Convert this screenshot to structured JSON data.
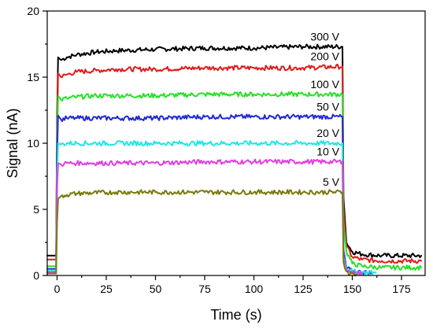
{
  "chart_data": {
    "type": "line",
    "xlabel": "Time (s)",
    "ylabel": "Signal (nA)",
    "xlim": [
      -5,
      187
    ],
    "ylim": [
      0,
      20
    ],
    "xticks": [
      0,
      25,
      50,
      75,
      100,
      125,
      150,
      175
    ],
    "yticks": [
      0,
      5,
      10,
      15,
      20
    ],
    "grid": false,
    "legend": "inline labels near right end of each series",
    "series": [
      {
        "name": "300 V",
        "color": "#000000",
        "points": [
          [
            -5,
            1.5
          ],
          [
            -0.5,
            1.5
          ],
          [
            0,
            12.0
          ],
          [
            0.5,
            16.5
          ],
          [
            2,
            16.3
          ],
          [
            5,
            16.5
          ],
          [
            10,
            16.7
          ],
          [
            20,
            16.9
          ],
          [
            30,
            17.0
          ],
          [
            50,
            17.1
          ],
          [
            75,
            17.2
          ],
          [
            100,
            17.2
          ],
          [
            125,
            17.3
          ],
          [
            145,
            17.3
          ],
          [
            145.5,
            6.0
          ],
          [
            147,
            2.5
          ],
          [
            150,
            1.8
          ],
          [
            155,
            1.6
          ],
          [
            165,
            1.5
          ],
          [
            185,
            1.5
          ]
        ]
      },
      {
        "name": "200 V",
        "color": "#e01b1b",
        "points": [
          [
            -5,
            1.2
          ],
          [
            -0.5,
            1.2
          ],
          [
            0,
            11.0
          ],
          [
            0.5,
            15.3
          ],
          [
            2,
            15.0
          ],
          [
            5,
            15.2
          ],
          [
            10,
            15.4
          ],
          [
            20,
            15.5
          ],
          [
            30,
            15.6
          ],
          [
            50,
            15.6
          ],
          [
            75,
            15.7
          ],
          [
            100,
            15.7
          ],
          [
            125,
            15.7
          ],
          [
            145,
            15.8
          ],
          [
            145.5,
            5.0
          ],
          [
            147,
            2.2
          ],
          [
            150,
            1.4
          ],
          [
            155,
            1.2
          ],
          [
            165,
            1.1
          ],
          [
            185,
            1.1
          ]
        ]
      },
      {
        "name": "100 V",
        "color": "#28e028",
        "points": [
          [
            -5,
            0.7
          ],
          [
            -0.5,
            0.7
          ],
          [
            0,
            10.0
          ],
          [
            0.5,
            13.6
          ],
          [
            2,
            13.3
          ],
          [
            5,
            13.4
          ],
          [
            10,
            13.5
          ],
          [
            20,
            13.6
          ],
          [
            30,
            13.6
          ],
          [
            50,
            13.6
          ],
          [
            75,
            13.7
          ],
          [
            100,
            13.7
          ],
          [
            125,
            13.7
          ],
          [
            145,
            13.7
          ],
          [
            145.5,
            4.0
          ],
          [
            147,
            1.8
          ],
          [
            150,
            0.9
          ],
          [
            155,
            0.7
          ],
          [
            165,
            0.6
          ],
          [
            185,
            0.6
          ]
        ]
      },
      {
        "name": "50 V",
        "color": "#1f2ad6",
        "points": [
          [
            -5,
            0.5
          ],
          [
            -0.5,
            0.5
          ],
          [
            0,
            9.0
          ],
          [
            0.5,
            12.1
          ],
          [
            2,
            11.8
          ],
          [
            5,
            11.9
          ],
          [
            10,
            11.9
          ],
          [
            30,
            11.9
          ],
          [
            50,
            11.9
          ],
          [
            75,
            12.0
          ],
          [
            100,
            12.0
          ],
          [
            125,
            12.0
          ],
          [
            145,
            12.0
          ],
          [
            145.5,
            2.0
          ],
          [
            147,
            0.6
          ],
          [
            150,
            0.3
          ],
          [
            160,
            0.2
          ]
        ]
      },
      {
        "name": "20 V",
        "color": "#22e5e5",
        "points": [
          [
            -5,
            0.35
          ],
          [
            -0.5,
            0.35
          ],
          [
            0,
            7.5
          ],
          [
            0.5,
            10.0
          ],
          [
            2,
            9.9
          ],
          [
            5,
            10.0
          ],
          [
            10,
            10.0
          ],
          [
            30,
            10.0
          ],
          [
            50,
            10.0
          ],
          [
            75,
            10.0
          ],
          [
            100,
            10.0
          ],
          [
            125,
            10.0
          ],
          [
            145,
            10.0
          ],
          [
            145.5,
            1.5
          ],
          [
            147,
            0.5
          ],
          [
            150,
            0.3
          ],
          [
            162,
            0.2
          ]
        ]
      },
      {
        "name": "10 V",
        "color": "#e040e0",
        "points": [
          [
            -5,
            0.25
          ],
          [
            -0.5,
            0.25
          ],
          [
            0,
            6.5
          ],
          [
            0.5,
            8.5
          ],
          [
            2,
            8.4
          ],
          [
            5,
            8.5
          ],
          [
            10,
            8.5
          ],
          [
            30,
            8.5
          ],
          [
            50,
            8.5
          ],
          [
            75,
            8.6
          ],
          [
            100,
            8.6
          ],
          [
            125,
            8.6
          ],
          [
            145,
            8.6
          ],
          [
            145.5,
            1.3
          ],
          [
            147,
            0.4
          ],
          [
            150,
            0.2
          ],
          [
            155,
            0.15
          ]
        ]
      },
      {
        "name": "5 V",
        "color": "#7a7a10",
        "points": [
          [
            -5,
            0.15
          ],
          [
            -0.5,
            0.15
          ],
          [
            0,
            4.0
          ],
          [
            0.5,
            5.8
          ],
          [
            2,
            6.0
          ],
          [
            5,
            6.1
          ],
          [
            10,
            6.2
          ],
          [
            30,
            6.3
          ],
          [
            50,
            6.3
          ],
          [
            75,
            6.3
          ],
          [
            100,
            6.3
          ],
          [
            125,
            6.3
          ],
          [
            145,
            6.3
          ],
          [
            145.5,
            1.0
          ],
          [
            147,
            0.3
          ],
          [
            150,
            0.15
          ],
          [
            152,
            0.1
          ]
        ]
      }
    ]
  }
}
